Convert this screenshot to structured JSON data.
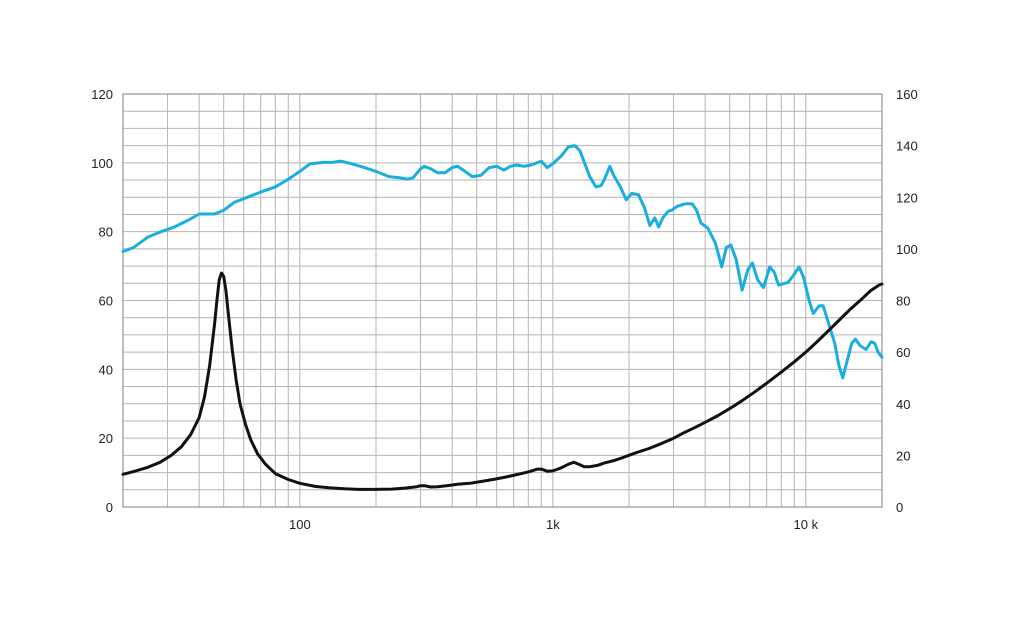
{
  "chart_data": {
    "type": "line",
    "title": "",
    "xlabel": "",
    "ylabel": "",
    "y2label": "",
    "x_scale": "log",
    "xlim": [
      20,
      20000
    ],
    "ylim": [
      0,
      120
    ],
    "y2lim": [
      0,
      160
    ],
    "grid": true,
    "legend": "none",
    "x_ticks": [
      {
        "value": 100,
        "label": "100"
      },
      {
        "value": 1000,
        "label": "1k"
      },
      {
        "value": 10000,
        "label": "10 k"
      }
    ],
    "y_ticks": [
      {
        "value": 0,
        "label": "0"
      },
      {
        "value": 20,
        "label": "20"
      },
      {
        "value": 40,
        "label": "40"
      },
      {
        "value": 60,
        "label": "60"
      },
      {
        "value": 80,
        "label": "80"
      },
      {
        "value": 100,
        "label": "100"
      },
      {
        "value": 120,
        "label": "120"
      }
    ],
    "y2_ticks": [
      {
        "value": 0,
        "label": "0"
      },
      {
        "value": 20,
        "label": "20"
      },
      {
        "value": 40,
        "label": "40"
      },
      {
        "value": 60,
        "label": "60"
      },
      {
        "value": 80,
        "label": "80"
      },
      {
        "value": 100,
        "label": "100"
      },
      {
        "value": 120,
        "label": "120"
      },
      {
        "value": 140,
        "label": "140"
      },
      {
        "value": 160,
        "label": "160"
      }
    ],
    "series": [
      {
        "axis": "right",
        "color": "#1aaedc",
        "points": [
          [
            20,
            99
          ],
          [
            22,
            100.5
          ],
          [
            25,
            104.5
          ],
          [
            28,
            106.5
          ],
          [
            32,
            108.5
          ],
          [
            36,
            111
          ],
          [
            40,
            113.5
          ],
          [
            46,
            113.5
          ],
          [
            50,
            115
          ],
          [
            55,
            118
          ],
          [
            62,
            120
          ],
          [
            70,
            122
          ],
          [
            80,
            124
          ],
          [
            90,
            127
          ],
          [
            100,
            130
          ],
          [
            110,
            133
          ],
          [
            125,
            133.5
          ],
          [
            135,
            133.5
          ],
          [
            145,
            134
          ],
          [
            160,
            133
          ],
          [
            180,
            131.5
          ],
          [
            200,
            130
          ],
          [
            225,
            128
          ],
          [
            250,
            127.5
          ],
          [
            265,
            127
          ],
          [
            280,
            127.5
          ],
          [
            300,
            131
          ],
          [
            310,
            132
          ],
          [
            330,
            131
          ],
          [
            350,
            129.5
          ],
          [
            375,
            129.5
          ],
          [
            400,
            131.5
          ],
          [
            420,
            132
          ],
          [
            450,
            130
          ],
          [
            480,
            128
          ],
          [
            520,
            128.5
          ],
          [
            560,
            131.5
          ],
          [
            600,
            132
          ],
          [
            640,
            130.5
          ],
          [
            680,
            132
          ],
          [
            720,
            132.5
          ],
          [
            770,
            132
          ],
          [
            820,
            132.5
          ],
          [
            900,
            134
          ],
          [
            950,
            131.5
          ],
          [
            1000,
            133
          ],
          [
            1080,
            136
          ],
          [
            1150,
            139.5
          ],
          [
            1220,
            140
          ],
          [
            1280,
            138
          ],
          [
            1350,
            132
          ],
          [
            1400,
            128
          ],
          [
            1480,
            124
          ],
          [
            1550,
            124.5
          ],
          [
            1600,
            127
          ],
          [
            1680,
            132
          ],
          [
            1750,
            128
          ],
          [
            1850,
            124
          ],
          [
            1950,
            119
          ],
          [
            2050,
            121.5
          ],
          [
            2180,
            121
          ],
          [
            2300,
            116
          ],
          [
            2420,
            109
          ],
          [
            2530,
            112
          ],
          [
            2620,
            108.5
          ],
          [
            2720,
            112
          ],
          [
            2850,
            114.5
          ],
          [
            2950,
            115
          ],
          [
            3100,
            116.5
          ],
          [
            3350,
            117.5
          ],
          [
            3550,
            117.5
          ],
          [
            3700,
            115
          ],
          [
            3850,
            110
          ],
          [
            4100,
            108
          ],
          [
            4400,
            102
          ],
          [
            4650,
            93
          ],
          [
            4850,
            100.5
          ],
          [
            5050,
            101.5
          ],
          [
            5300,
            96
          ],
          [
            5600,
            84
          ],
          [
            5900,
            92
          ],
          [
            6150,
            94.5
          ],
          [
            6450,
            88
          ],
          [
            6800,
            85
          ],
          [
            7200,
            93
          ],
          [
            7500,
            91
          ],
          [
            7800,
            86
          ],
          [
            8150,
            86.5
          ],
          [
            8500,
            87
          ],
          [
            8900,
            89.5
          ],
          [
            9400,
            93
          ],
          [
            9800,
            89
          ],
          [
            10300,
            80
          ],
          [
            10700,
            75
          ],
          [
            11300,
            78
          ],
          [
            11700,
            78
          ],
          [
            12400,
            70
          ],
          [
            13000,
            63.5
          ],
          [
            13500,
            55
          ],
          [
            14000,
            50
          ],
          [
            14500,
            56
          ],
          [
            15200,
            63.5
          ],
          [
            15700,
            65
          ],
          [
            16400,
            62.5
          ],
          [
            17300,
            61
          ],
          [
            18100,
            64
          ],
          [
            18700,
            63.5
          ],
          [
            19300,
            60
          ],
          [
            20000,
            58
          ]
        ]
      },
      {
        "axis": "left",
        "color": "#111111",
        "points": [
          [
            20,
            9.5
          ],
          [
            22,
            10.3
          ],
          [
            25,
            11.5
          ],
          [
            28,
            13
          ],
          [
            31,
            15
          ],
          [
            34,
            17.5
          ],
          [
            37,
            21
          ],
          [
            40,
            26
          ],
          [
            42,
            32
          ],
          [
            44,
            41
          ],
          [
            46,
            53
          ],
          [
            47,
            60
          ],
          [
            48,
            66
          ],
          [
            49,
            68
          ],
          [
            50,
            67
          ],
          [
            51,
            63
          ],
          [
            52,
            57
          ],
          [
            54,
            46
          ],
          [
            56,
            37
          ],
          [
            58,
            30
          ],
          [
            61,
            24
          ],
          [
            64,
            19.5
          ],
          [
            68,
            15.5
          ],
          [
            73,
            12.5
          ],
          [
            80,
            9.7
          ],
          [
            90,
            8
          ],
          [
            100,
            6.9
          ],
          [
            115,
            6
          ],
          [
            130,
            5.6
          ],
          [
            150,
            5.3
          ],
          [
            170,
            5.1
          ],
          [
            200,
            5.1
          ],
          [
            230,
            5.2
          ],
          [
            260,
            5.5
          ],
          [
            290,
            5.9
          ],
          [
            300,
            6.2
          ],
          [
            310,
            6.2
          ],
          [
            330,
            5.8
          ],
          [
            350,
            5.9
          ],
          [
            380,
            6.2
          ],
          [
            420,
            6.6
          ],
          [
            470,
            6.9
          ],
          [
            520,
            7.4
          ],
          [
            580,
            8
          ],
          [
            650,
            8.7
          ],
          [
            720,
            9.4
          ],
          [
            800,
            10.2
          ],
          [
            870,
            11
          ],
          [
            900,
            11
          ],
          [
            950,
            10.4
          ],
          [
            1000,
            10.5
          ],
          [
            1080,
            11.4
          ],
          [
            1150,
            12.4
          ],
          [
            1210,
            13
          ],
          [
            1260,
            12.5
          ],
          [
            1330,
            11.7
          ],
          [
            1400,
            11.7
          ],
          [
            1500,
            12.1
          ],
          [
            1600,
            12.8
          ],
          [
            1750,
            13.5
          ],
          [
            1900,
            14.4
          ],
          [
            2100,
            15.6
          ],
          [
            2400,
            17
          ],
          [
            2700,
            18.5
          ],
          [
            3000,
            20
          ],
          [
            3300,
            21.6
          ],
          [
            3600,
            22.9
          ],
          [
            4000,
            24.6
          ],
          [
            4500,
            26.6
          ],
          [
            5000,
            28.6
          ],
          [
            5600,
            30.9
          ],
          [
            6300,
            33.5
          ],
          [
            7100,
            36.3
          ],
          [
            8000,
            39.2
          ],
          [
            9000,
            42.2
          ],
          [
            10000,
            45
          ],
          [
            11000,
            47.8
          ],
          [
            12000,
            50.5
          ],
          [
            13500,
            54.2
          ],
          [
            15000,
            57.5
          ],
          [
            16500,
            60.2
          ],
          [
            18000,
            62.8
          ],
          [
            19500,
            64.5
          ],
          [
            20000,
            64.8
          ]
        ]
      }
    ]
  }
}
